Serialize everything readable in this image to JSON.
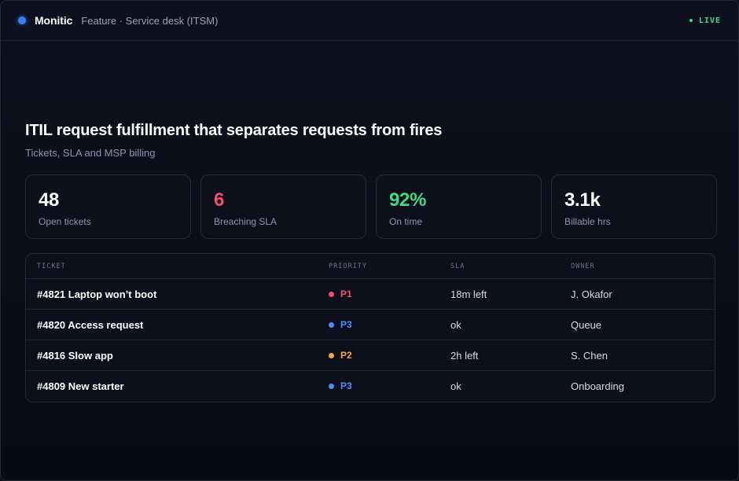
{
  "header": {
    "brand": "Monitic",
    "breadcrumb": "Feature · Service desk (ITSM)",
    "live_label": "LIVE",
    "live_color": "#3ddc84",
    "brand_color": "#3b7bf6"
  },
  "hero": {
    "title": "ITIL request fulfillment that separates requests from fires",
    "subtitle": "Tickets, SLA and MSP billing"
  },
  "stats": [
    {
      "value": "48",
      "label": "Open tickets",
      "color": "#ffffff"
    },
    {
      "value": "6",
      "label": "Breaching SLA",
      "color": "#f0506e"
    },
    {
      "value": "92%",
      "label": "On time",
      "color": "#3ddc84"
    },
    {
      "value": "3.1k",
      "label": "Billable hrs",
      "color": "#ffffff"
    }
  ],
  "table": {
    "columns": [
      "TICKET",
      "PRIORITY",
      "SLA",
      "OWNER"
    ],
    "rows": [
      {
        "ticket": "#4821 Laptop won’t boot",
        "priority": "P1",
        "priority_color": "#f0506e",
        "sla": "18m left",
        "owner": "J. Okafor"
      },
      {
        "ticket": "#4820 Access request",
        "priority": "P3",
        "priority_color": "#4f8df7",
        "sla": "ok",
        "owner": "Queue"
      },
      {
        "ticket": "#4816 Slow app",
        "priority": "P2",
        "priority_color": "#f5a742",
        "sla": "2h left",
        "owner": "S. Chen"
      },
      {
        "ticket": "#4809 New starter",
        "priority": "P3",
        "priority_color": "#4f8df7",
        "sla": "ok",
        "owner": "Onboarding"
      }
    ]
  }
}
